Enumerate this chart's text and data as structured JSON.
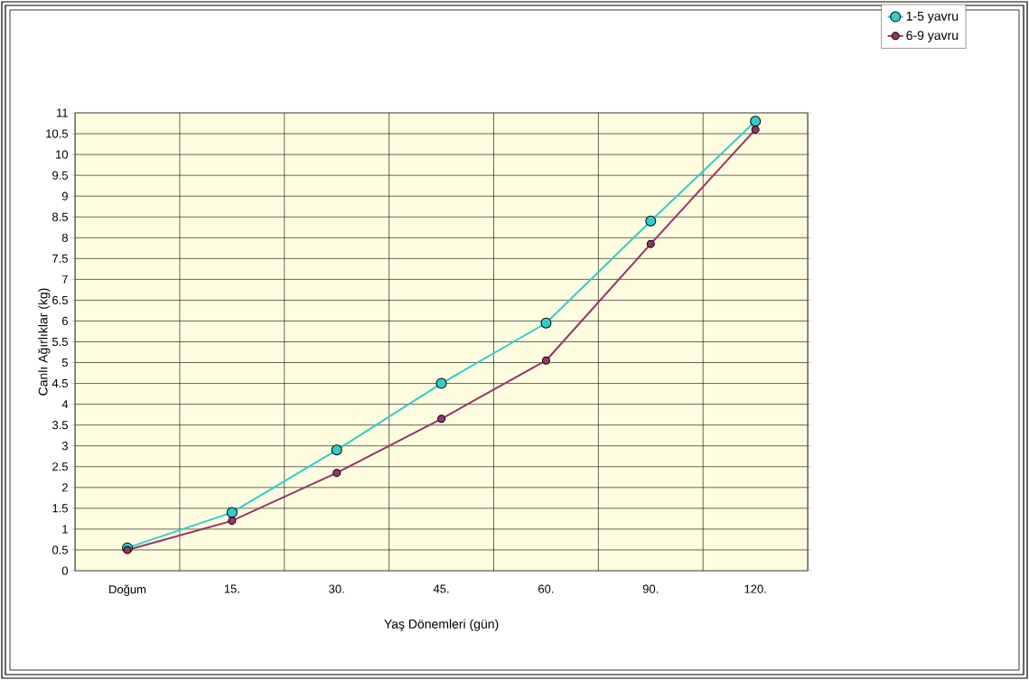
{
  "chart_data": {
    "type": "line",
    "xlabel": "Yaş Dönemleri (gün)",
    "ylabel": "Canlı Ağırlıklar (kg)",
    "categories": [
      "Doğum",
      "15.",
      "30.",
      "45.",
      "60.",
      "90.",
      "120."
    ],
    "series": [
      {
        "name": "1-5 yavru",
        "color": "#33cccc",
        "values": [
          0.55,
          1.4,
          2.9,
          4.5,
          5.95,
          8.4,
          10.8
        ]
      },
      {
        "name": "6-9 yavru",
        "color": "#993366",
        "values": [
          0.5,
          1.2,
          2.35,
          3.65,
          5.05,
          7.85,
          10.6
        ]
      }
    ],
    "ylim": [
      0,
      11
    ],
    "yticks": [
      0,
      0.5,
      1,
      1.5,
      2,
      2.5,
      3,
      3.5,
      4,
      4.5,
      5,
      5.5,
      6,
      6.5,
      7,
      7.5,
      8,
      8.5,
      9,
      9.5,
      10,
      10.5,
      11
    ],
    "grid": true,
    "legend": "top right",
    "marker": "circle",
    "line_style": "solid"
  }
}
